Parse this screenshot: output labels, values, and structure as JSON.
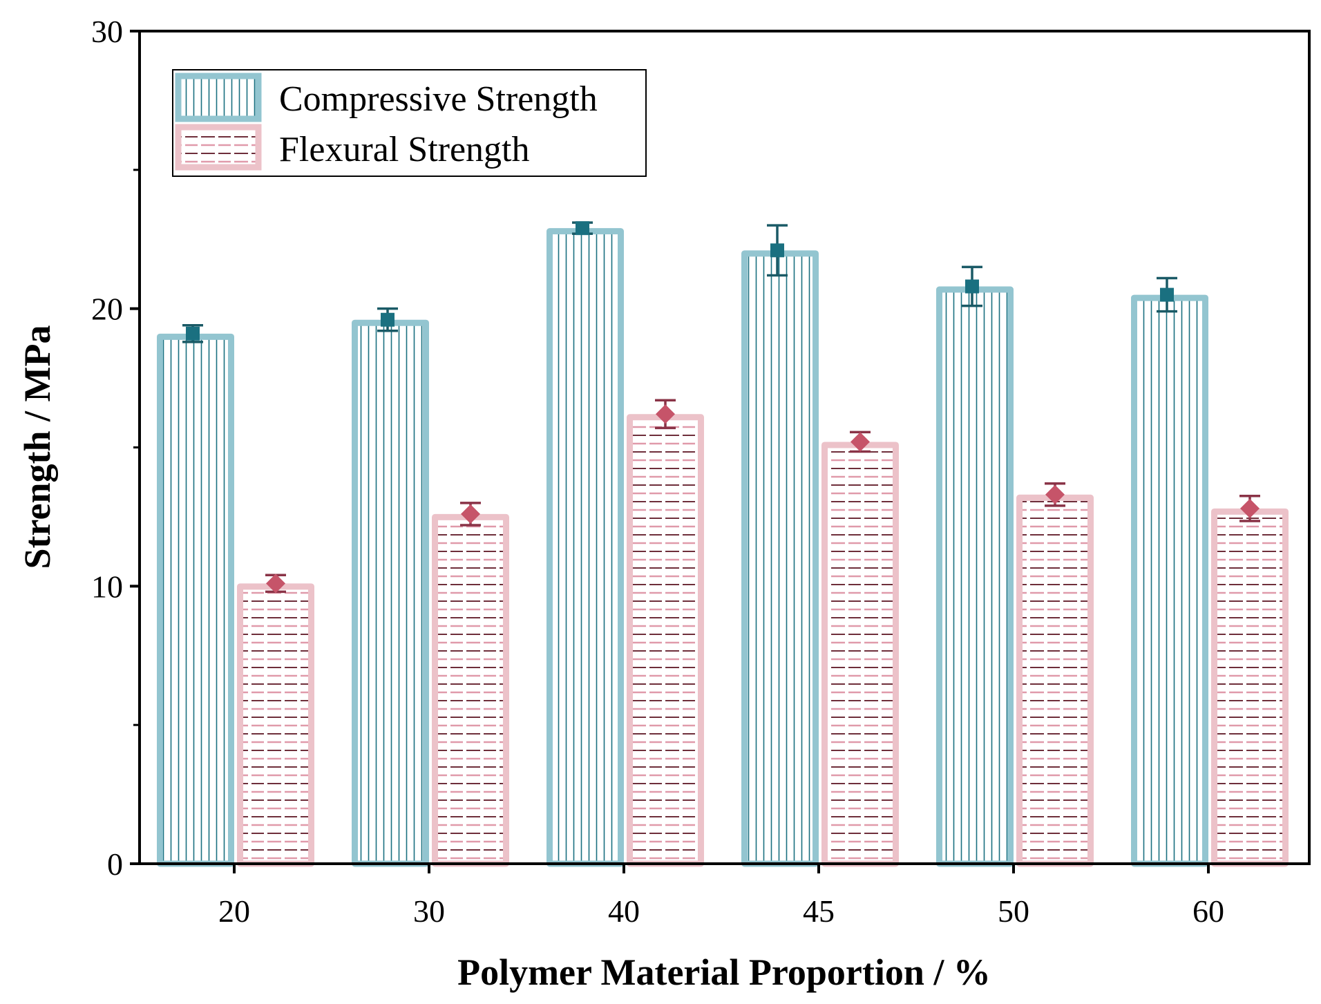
{
  "chart_data": {
    "type": "bar",
    "title": "",
    "xlabel": "Polymer Material Proportion / %",
    "ylabel": "Strength / MPa",
    "categories": [
      "20",
      "30",
      "40",
      "45",
      "50",
      "60"
    ],
    "ylim": [
      0,
      30
    ],
    "yticks": [
      "0",
      "10",
      "20",
      "30"
    ],
    "minor_yticks": [
      5,
      15,
      25
    ],
    "grid": false,
    "legend_position": "top-left",
    "series": [
      {
        "name": "Compressive Strength",
        "pattern": "vertical-lines",
        "color": "#93c5d0",
        "marker": "square",
        "marker_color": "#1a7080",
        "values": [
          19.1,
          19.6,
          22.9,
          22.1,
          20.8,
          20.5
        ],
        "errors": [
          0.3,
          0.4,
          0.2,
          0.9,
          0.7,
          0.6
        ]
      },
      {
        "name": "Flexural Strength",
        "pattern": "dashed-horizontal",
        "color": "#ecc2c9",
        "marker": "diamond",
        "marker_color": "#c65469",
        "values": [
          10.1,
          12.6,
          16.2,
          15.2,
          13.3,
          12.8
        ],
        "errors": [
          0.3,
          0.4,
          0.5,
          0.35,
          0.4,
          0.45
        ]
      }
    ]
  }
}
